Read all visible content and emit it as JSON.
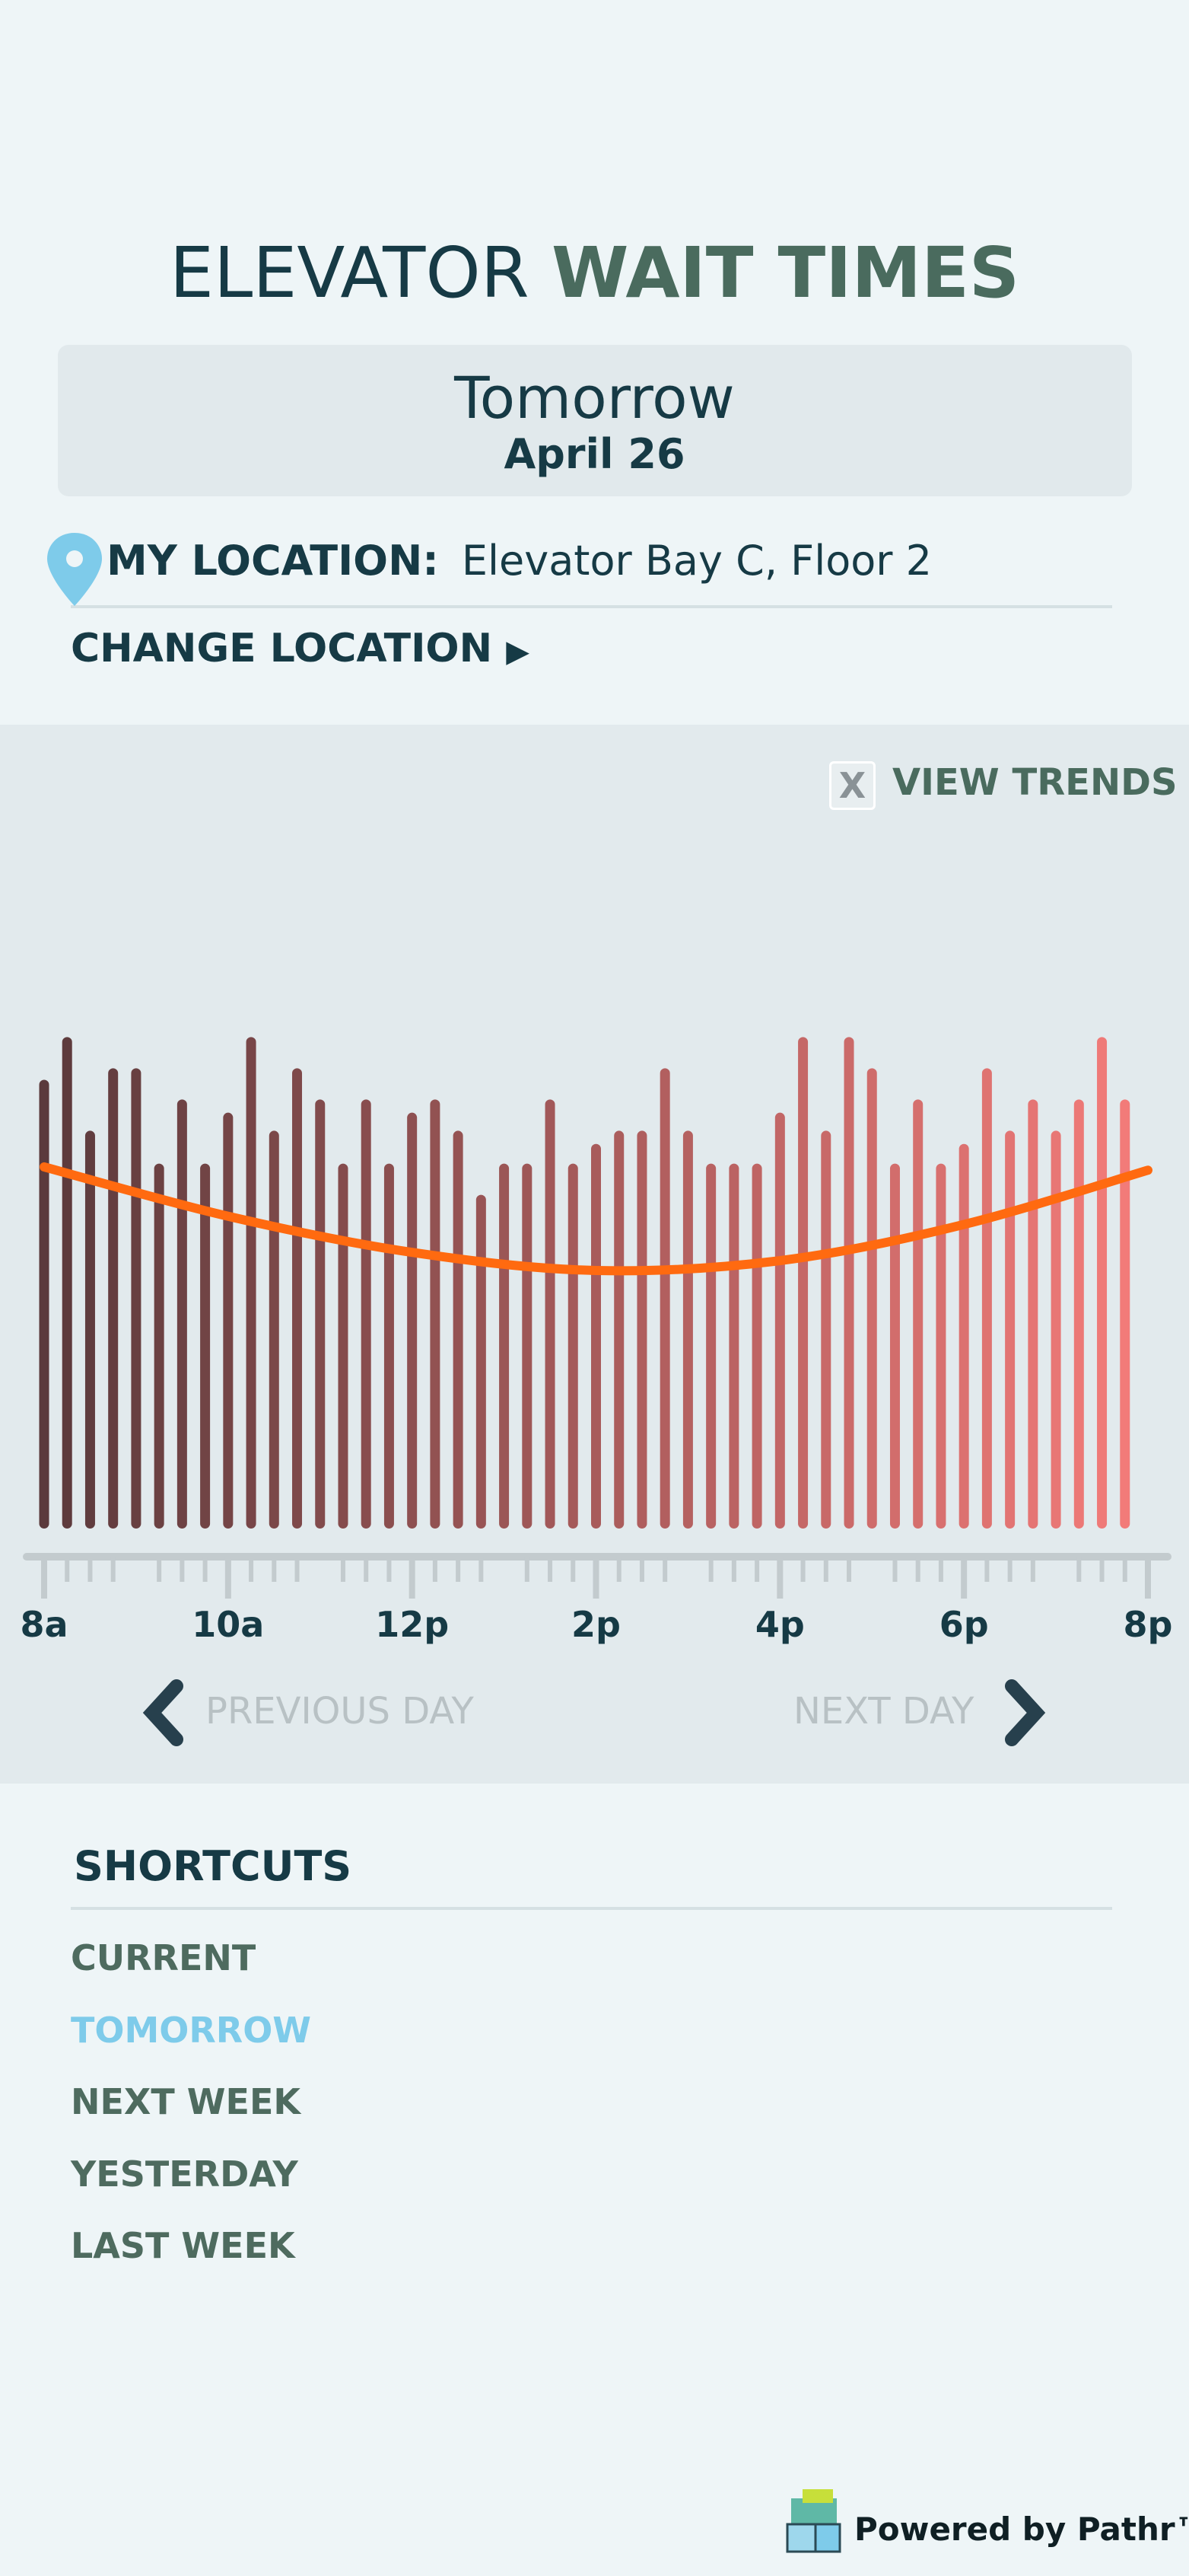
{
  "header": {
    "title_light": "ELEVATOR",
    "title_bold": "WAIT TIMES",
    "day": "Tomorrow",
    "date": "April 26"
  },
  "location": {
    "label": "MY LOCATION:",
    "value": "Elevator Bay C, Floor 2",
    "change": "CHANGE LOCATION"
  },
  "view_trends": {
    "checkbox": "X",
    "label": "VIEW TRENDS"
  },
  "chart_data": {
    "type": "bar",
    "x": [
      8,
      8.25,
      8.5,
      8.75,
      9,
      9.25,
      9.5,
      9.75,
      10,
      10.25,
      10.5,
      10.75,
      11,
      11.25,
      11.5,
      11.75,
      12,
      12.25,
      12.5,
      12.75,
      13,
      13.25,
      13.5,
      13.75,
      14,
      14.25,
      14.5,
      14.75,
      15,
      15.25,
      15.5,
      15.75,
      16,
      16.25,
      16.5,
      16.75,
      17,
      17.25,
      17.5,
      17.75,
      18,
      18.25,
      18.5,
      18.75,
      19,
      19.25,
      19.5,
      19.75
    ],
    "values": [
      273,
      299,
      242,
      280,
      280,
      222,
      261,
      222,
      253,
      299,
      242,
      280,
      261,
      222,
      261,
      222,
      253,
      261,
      242,
      203,
      222,
      222,
      261,
      222,
      234,
      242,
      242,
      280,
      242,
      222,
      222,
      222,
      253,
      299,
      242,
      299,
      280,
      222,
      261,
      222,
      234,
      280,
      242,
      261,
      242,
      261,
      299,
      261
    ],
    "color_start": "#5b3a3c",
    "color_end": "#f27b79",
    "trend": {
      "color": "#ff6a10",
      "x": [
        8,
        10,
        12,
        14,
        16,
        18,
        20
      ],
      "values": [
        220,
        190,
        168,
        157,
        163,
        185,
        218
      ]
    },
    "xlim": [
      8,
      20
    ],
    "ylim": [
      0,
      320
    ],
    "xticks": [
      {
        "value": 8,
        "label": "8a"
      },
      {
        "value": 10,
        "label": "10a"
      },
      {
        "value": 12,
        "label": "12p"
      },
      {
        "value": 14,
        "label": "2p"
      },
      {
        "value": 16,
        "label": "4p"
      },
      {
        "value": 18,
        "label": "6p"
      },
      {
        "value": 20,
        "label": "8p"
      }
    ]
  },
  "nav": {
    "previous": "PREVIOUS DAY",
    "next": "NEXT DAY"
  },
  "shortcuts": {
    "title": "SHORTCUTS",
    "items": [
      "CURRENT",
      "TOMORROW",
      "NEXT WEEK",
      "YESTERDAY",
      "LAST WEEK"
    ],
    "active": 1
  },
  "footer": {
    "powered": "Powered by Pathr™"
  }
}
